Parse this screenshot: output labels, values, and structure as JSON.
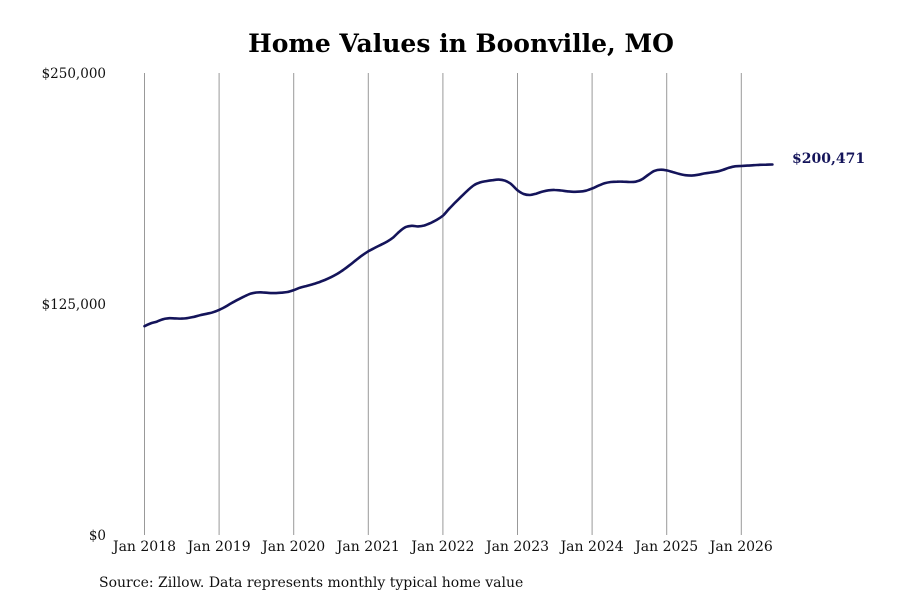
{
  "chart_data": {
    "type": "line",
    "title": "Home Values in Boonville, MO",
    "xlabel": "",
    "ylabel": "",
    "ylim": [
      0,
      250000
    ],
    "y_ticks": [
      "$0",
      "$125,000",
      "$250,000"
    ],
    "x_ticks": [
      "Jan 2018",
      "Jan 2019",
      "Jan 2020",
      "Jan 2021",
      "Jan 2022",
      "Jan 2023",
      "Jan 2024",
      "Jan 2025",
      "Jan 2026"
    ],
    "grid": "vertical",
    "line_color": "#14145a",
    "end_label": "$200,471",
    "source": "Source: Zillow. Data represents monthly typical home value",
    "series": [
      {
        "points": [
          [
            "2018-01",
            113000
          ],
          [
            "2018-02",
            114500
          ],
          [
            "2018-03",
            115500
          ],
          [
            "2018-04",
            116800
          ],
          [
            "2018-05",
            117300
          ],
          [
            "2018-06",
            117200
          ],
          [
            "2018-07",
            117100
          ],
          [
            "2018-08",
            117400
          ],
          [
            "2018-09",
            118100
          ],
          [
            "2018-10",
            119000
          ],
          [
            "2018-11",
            119700
          ],
          [
            "2018-12",
            120500
          ],
          [
            "2019-01",
            121800
          ],
          [
            "2019-02",
            123500
          ],
          [
            "2019-03",
            125500
          ],
          [
            "2019-04",
            127300
          ],
          [
            "2019-05",
            129000
          ],
          [
            "2019-06",
            130500
          ],
          [
            "2019-07",
            131200
          ],
          [
            "2019-08",
            131300
          ],
          [
            "2019-09",
            131000
          ],
          [
            "2019-10",
            130900
          ],
          [
            "2019-11",
            131100
          ],
          [
            "2019-12",
            131500
          ],
          [
            "2020-01",
            132500
          ],
          [
            "2020-02",
            133800
          ],
          [
            "2020-03",
            134700
          ],
          [
            "2020-04",
            135600
          ],
          [
            "2020-05",
            136700
          ],
          [
            "2020-06",
            138000
          ],
          [
            "2020-07",
            139500
          ],
          [
            "2020-08",
            141300
          ],
          [
            "2020-09",
            143500
          ],
          [
            "2020-10",
            146000
          ],
          [
            "2020-11",
            148700
          ],
          [
            "2020-12",
            151300
          ],
          [
            "2021-01",
            153500
          ],
          [
            "2021-02",
            155300
          ],
          [
            "2021-03",
            157000
          ],
          [
            "2021-04",
            158700
          ],
          [
            "2021-05",
            161000
          ],
          [
            "2021-06",
            164200
          ],
          [
            "2021-07",
            166600
          ],
          [
            "2021-08",
            167300
          ],
          [
            "2021-09",
            167000
          ],
          [
            "2021-10",
            167500
          ],
          [
            "2021-11",
            168800
          ],
          [
            "2021-12",
            170500
          ],
          [
            "2022-01",
            172800
          ],
          [
            "2022-02",
            176500
          ],
          [
            "2022-03",
            180000
          ],
          [
            "2022-04",
            183300
          ],
          [
            "2022-05",
            186500
          ],
          [
            "2022-06",
            189300
          ],
          [
            "2022-07",
            190800
          ],
          [
            "2022-08",
            191500
          ],
          [
            "2022-09",
            192000
          ],
          [
            "2022-10",
            192300
          ],
          [
            "2022-11",
            191700
          ],
          [
            "2022-12",
            189800
          ],
          [
            "2023-01",
            186500
          ],
          [
            "2023-02",
            184500
          ],
          [
            "2023-03",
            184000
          ],
          [
            "2023-04",
            184700
          ],
          [
            "2023-05",
            185800
          ],
          [
            "2023-06",
            186500
          ],
          [
            "2023-07",
            186700
          ],
          [
            "2023-08",
            186400
          ],
          [
            "2023-09",
            186000
          ],
          [
            "2023-10",
            185700
          ],
          [
            "2023-11",
            185800
          ],
          [
            "2023-12",
            186300
          ],
          [
            "2024-01",
            187500
          ],
          [
            "2024-02",
            189000
          ],
          [
            "2024-03",
            190300
          ],
          [
            "2024-04",
            191000
          ],
          [
            "2024-05",
            191200
          ],
          [
            "2024-06",
            191200
          ],
          [
            "2024-07",
            191000
          ],
          [
            "2024-08",
            191200
          ],
          [
            "2024-09",
            192400
          ],
          [
            "2024-10",
            194800
          ],
          [
            "2024-11",
            197000
          ],
          [
            "2024-12",
            197700
          ],
          [
            "2025-01",
            197300
          ],
          [
            "2025-02",
            196400
          ],
          [
            "2025-03",
            195400
          ],
          [
            "2025-04",
            194700
          ],
          [
            "2025-05",
            194500
          ],
          [
            "2025-06",
            194900
          ],
          [
            "2025-07",
            195600
          ],
          [
            "2025-08",
            196100
          ],
          [
            "2025-09",
            196600
          ],
          [
            "2025-10",
            197500
          ],
          [
            "2025-11",
            198700
          ],
          [
            "2025-12",
            199500
          ],
          [
            "2026-01",
            199700
          ],
          [
            "2026-02",
            199900
          ],
          [
            "2026-03",
            200100
          ],
          [
            "2026-04",
            200300
          ],
          [
            "2026-05",
            200400
          ],
          [
            "2026-06",
            200471
          ]
        ]
      }
    ]
  }
}
